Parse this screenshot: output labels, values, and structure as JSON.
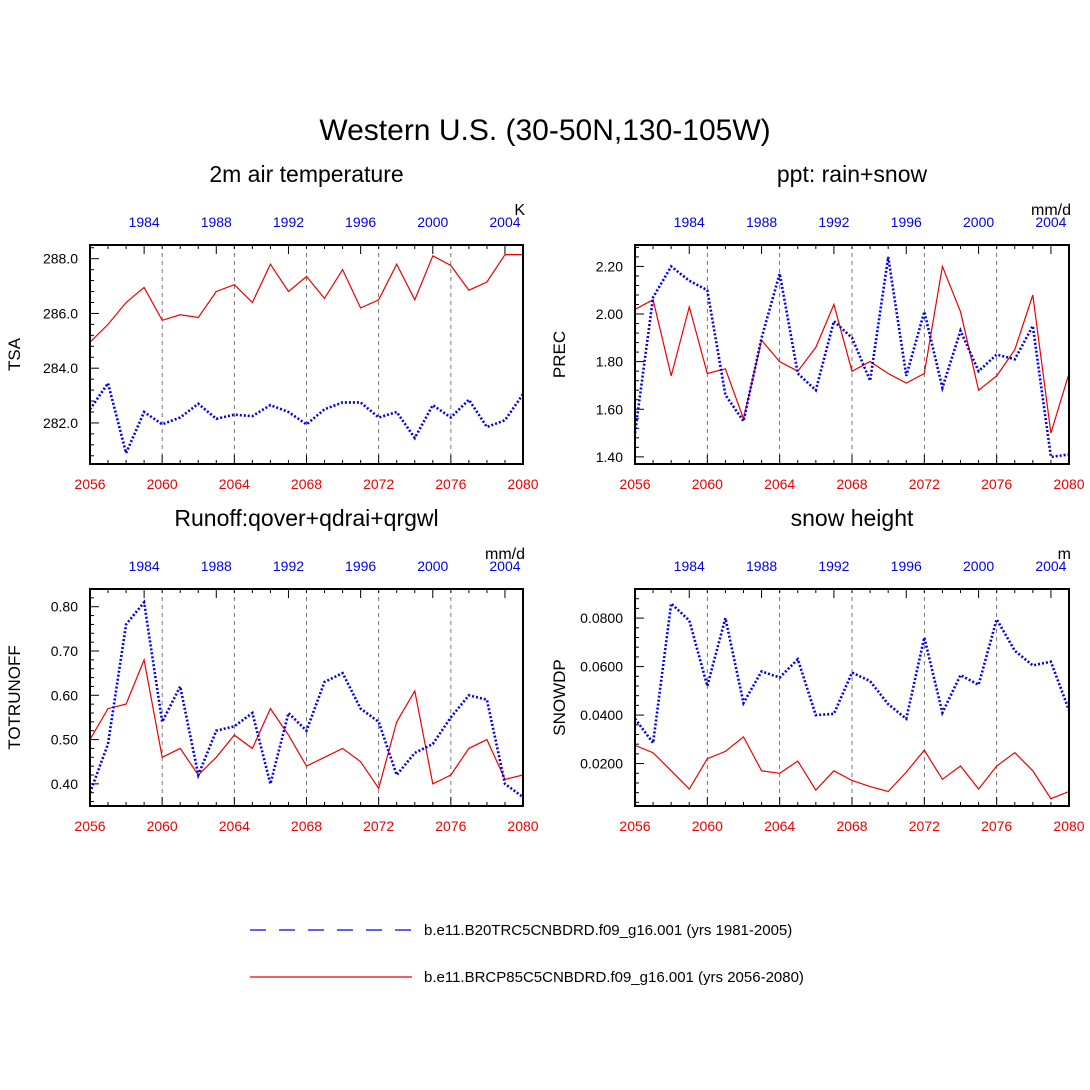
{
  "title": "Western U.S. (30-50N,130-105W)",
  "colors": {
    "historical": "#0000ee",
    "future": "#ee0000",
    "axis": "#000000",
    "grid": "#555555"
  },
  "legend": [
    {
      "label": "b.e11.B20TRC5CNBDRD.f09_g16.001 (yrs 1981-2005)",
      "color": "#0000ee",
      "style": "dashed"
    },
    {
      "label": "b.e11.BRCP85C5CNBDRD.f09_g16.001 (yrs 2056-2080)",
      "color": "#ee0000",
      "style": "solid"
    }
  ],
  "chart_data": [
    {
      "type": "line",
      "title": "2m air temperature",
      "ylabel": "TSA",
      "units": "K",
      "ylim": [
        280.5,
        288.5
      ],
      "yticks": [
        282.0,
        284.0,
        286.0,
        288.0
      ],
      "ytick_labels": [
        "282.0",
        "284.0",
        "286.0",
        "288.0"
      ],
      "x_bottom": {
        "label": "",
        "range": [
          2056,
          2080
        ],
        "ticks": [
          2056,
          2060,
          2064,
          2068,
          2072,
          2076,
          2080
        ],
        "tick_labels": [
          "2056",
          "2060",
          "2064",
          "2068",
          "2072",
          "2076",
          "2080"
        ]
      },
      "x_top": {
        "range": [
          1981,
          2005
        ],
        "ticks": [
          1984,
          1988,
          1992,
          1996,
          2000,
          2004
        ],
        "tick_labels": [
          "1984",
          "1988",
          "1992",
          "1996",
          "2000",
          "2004"
        ]
      },
      "series": [
        {
          "name": "b.e11.BRCP85C5CNBDRD.f09_g16.001 (yrs 2056-2080)",
          "axis": "bottom",
          "x": [
            2056,
            2057,
            2058,
            2059,
            2060,
            2061,
            2062,
            2063,
            2064,
            2065,
            2066,
            2067,
            2068,
            2069,
            2070,
            2071,
            2072,
            2073,
            2074,
            2075,
            2076,
            2077,
            2078,
            2079,
            2080
          ],
          "values": [
            284.95,
            285.6,
            286.4,
            286.95,
            285.75,
            285.95,
            285.85,
            286.8,
            287.05,
            286.4,
            287.8,
            286.8,
            287.35,
            286.55,
            287.6,
            286.2,
            286.5,
            287.8,
            286.5,
            288.1,
            287.75,
            286.85,
            287.15,
            288.15,
            288.15
          ]
        },
        {
          "name": "b.e11.B20TRC5CNBDRD.f09_g16.001 (yrs 1981-2005)",
          "axis": "top",
          "x": [
            1981,
            1982,
            1983,
            1984,
            1985,
            1986,
            1987,
            1988,
            1989,
            1990,
            1991,
            1992,
            1993,
            1994,
            1995,
            1996,
            1997,
            1998,
            1999,
            2000,
            2001,
            2002,
            2003,
            2004,
            2005
          ],
          "values": [
            282.5,
            283.45,
            280.9,
            282.4,
            281.95,
            282.2,
            282.7,
            282.15,
            282.3,
            282.25,
            282.65,
            282.4,
            281.95,
            282.5,
            282.75,
            282.75,
            282.2,
            282.4,
            281.45,
            282.65,
            282.2,
            282.85,
            281.85,
            282.1,
            283.05
          ]
        }
      ]
    },
    {
      "type": "line",
      "title": "ppt: rain+snow",
      "ylabel": "PREC",
      "units": "mm/d",
      "ylim": [
        1.37,
        2.29
      ],
      "yticks": [
        1.4,
        1.6,
        1.8,
        2.0,
        2.2
      ],
      "ytick_labels": [
        "1.40",
        "1.60",
        "1.80",
        "2.00",
        "2.20"
      ],
      "x_bottom": {
        "range": [
          2056,
          2080
        ],
        "ticks": [
          2056,
          2060,
          2064,
          2068,
          2072,
          2076,
          2080
        ],
        "tick_labels": [
          "2056",
          "2060",
          "2064",
          "2068",
          "2072",
          "2076",
          "2080"
        ]
      },
      "x_top": {
        "range": [
          1981,
          2005
        ],
        "ticks": [
          1984,
          1988,
          1992,
          1996,
          2000,
          2004
        ],
        "tick_labels": [
          "1984",
          "1988",
          "1992",
          "1996",
          "2000",
          "2004"
        ]
      },
      "series": [
        {
          "name": "b.e11.BRCP85C5CNBDRD.f09_g16.001 (yrs 2056-2080)",
          "axis": "bottom",
          "x": [
            2056,
            2057,
            2058,
            2059,
            2060,
            2061,
            2062,
            2063,
            2064,
            2065,
            2066,
            2067,
            2068,
            2069,
            2070,
            2071,
            2072,
            2073,
            2074,
            2075,
            2076,
            2077,
            2078,
            2079,
            2080
          ],
          "values": [
            2.02,
            2.06,
            1.74,
            2.03,
            1.75,
            1.77,
            1.56,
            1.89,
            1.8,
            1.76,
            1.86,
            2.04,
            1.76,
            1.8,
            1.75,
            1.71,
            1.75,
            2.2,
            2.01,
            1.68,
            1.74,
            1.85,
            2.08,
            1.5,
            1.75
          ]
        },
        {
          "name": "b.e11.B20TRC5CNBDRD.f09_g16.001 (yrs 1981-2005)",
          "axis": "top",
          "x": [
            1981,
            1982,
            1983,
            1984,
            1985,
            1986,
            1987,
            1988,
            1989,
            1990,
            1991,
            1992,
            1993,
            1994,
            1995,
            1996,
            1997,
            1998,
            1999,
            2000,
            2001,
            2002,
            2003,
            2004,
            2005
          ],
          "values": [
            1.5,
            2.07,
            2.2,
            2.14,
            2.1,
            1.66,
            1.55,
            1.9,
            2.17,
            1.75,
            1.68,
            1.97,
            1.9,
            1.72,
            2.24,
            1.74,
            2.01,
            1.69,
            1.93,
            1.76,
            1.83,
            1.81,
            1.95,
            1.4,
            1.41
          ]
        }
      ]
    },
    {
      "type": "line",
      "title": "Runoff:qover+qdrai+qrgwl",
      "ylabel": "TOTRUNOFF",
      "units": "mm/d",
      "ylim": [
        0.35,
        0.84
      ],
      "yticks": [
        0.4,
        0.5,
        0.6,
        0.7,
        0.8
      ],
      "ytick_labels": [
        "0.40",
        "0.50",
        "0.60",
        "0.70",
        "0.80"
      ],
      "x_bottom": {
        "range": [
          2056,
          2080
        ],
        "ticks": [
          2056,
          2060,
          2064,
          2068,
          2072,
          2076,
          2080
        ],
        "tick_labels": [
          "2056",
          "2060",
          "2064",
          "2068",
          "2072",
          "2076",
          "2080"
        ]
      },
      "x_top": {
        "range": [
          1981,
          2005
        ],
        "ticks": [
          1984,
          1988,
          1992,
          1996,
          2000,
          2004
        ],
        "tick_labels": [
          "1984",
          "1988",
          "1992",
          "1996",
          "2000",
          "2004"
        ]
      },
      "series": [
        {
          "name": "b.e11.BRCP85C5CNBDRD.f09_g16.001 (yrs 2056-2080)",
          "axis": "bottom",
          "x": [
            2056,
            2057,
            2058,
            2059,
            2060,
            2061,
            2062,
            2063,
            2064,
            2065,
            2066,
            2067,
            2068,
            2069,
            2070,
            2071,
            2072,
            2073,
            2074,
            2075,
            2076,
            2077,
            2078,
            2079,
            2080
          ],
          "values": [
            0.5,
            0.57,
            0.58,
            0.68,
            0.46,
            0.48,
            0.42,
            0.46,
            0.51,
            0.48,
            0.57,
            0.51,
            0.44,
            0.46,
            0.48,
            0.45,
            0.39,
            0.54,
            0.61,
            0.4,
            0.42,
            0.48,
            0.5,
            0.41,
            0.42
          ]
        },
        {
          "name": "b.e11.B20TRC5CNBDRD.f09_g16.001 (yrs 1981-2005)",
          "axis": "top",
          "x": [
            1981,
            1982,
            1983,
            1984,
            1985,
            1986,
            1987,
            1988,
            1989,
            1990,
            1991,
            1992,
            1993,
            1994,
            1995,
            1996,
            1997,
            1998,
            1999,
            2000,
            2001,
            2002,
            2003,
            2004,
            2005
          ],
          "values": [
            0.38,
            0.49,
            0.76,
            0.81,
            0.54,
            0.62,
            0.42,
            0.52,
            0.53,
            0.56,
            0.4,
            0.56,
            0.52,
            0.63,
            0.65,
            0.57,
            0.54,
            0.42,
            0.47,
            0.49,
            0.55,
            0.6,
            0.59,
            0.4,
            0.37
          ]
        }
      ]
    },
    {
      "type": "line",
      "title": "snow height",
      "ylabel": "SNOWDP",
      "units": "m",
      "ylim": [
        0.0025,
        0.092
      ],
      "yticks": [
        0.02,
        0.04,
        0.06,
        0.08
      ],
      "ytick_labels": [
        "0.0200",
        "0.0400",
        "0.0600",
        "0.0800"
      ],
      "x_bottom": {
        "range": [
          2056,
          2080
        ],
        "ticks": [
          2056,
          2060,
          2064,
          2068,
          2072,
          2076,
          2080
        ],
        "tick_labels": [
          "2056",
          "2060",
          "2064",
          "2068",
          "2072",
          "2076",
          "2080"
        ]
      },
      "x_top": {
        "range": [
          1981,
          2005
        ],
        "ticks": [
          1984,
          1988,
          1992,
          1996,
          2000,
          2004
        ],
        "tick_labels": [
          "1984",
          "1988",
          "1992",
          "1996",
          "2000",
          "2004"
        ]
      },
      "series": [
        {
          "name": "b.e11.BRCP85C5CNBDRD.f09_g16.001 (yrs 2056-2080)",
          "axis": "bottom",
          "x": [
            2056,
            2057,
            2058,
            2059,
            2060,
            2061,
            2062,
            2063,
            2064,
            2065,
            2066,
            2067,
            2068,
            2069,
            2070,
            2071,
            2072,
            2073,
            2074,
            2075,
            2076,
            2077,
            2078,
            2079,
            2080
          ],
          "values": [
            0.0275,
            0.0245,
            0.017,
            0.0095,
            0.022,
            0.025,
            0.031,
            0.017,
            0.016,
            0.021,
            0.009,
            0.017,
            0.013,
            0.0105,
            0.0085,
            0.0165,
            0.0255,
            0.0135,
            0.019,
            0.0095,
            0.019,
            0.0245,
            0.017,
            0.0055,
            0.0085
          ]
        },
        {
          "name": "b.e11.B20TRC5CNBDRD.f09_g16.001 (yrs 1981-2005)",
          "axis": "top",
          "x": [
            1981,
            1982,
            1983,
            1984,
            1985,
            1986,
            1987,
            1988,
            1989,
            1990,
            1991,
            1992,
            1993,
            1994,
            1995,
            1996,
            1997,
            1998,
            1999,
            2000,
            2001,
            2002,
            2003,
            2004,
            2005
          ],
          "values": [
            0.0385,
            0.0285,
            0.086,
            0.079,
            0.052,
            0.08,
            0.045,
            0.058,
            0.0555,
            0.063,
            0.04,
            0.0405,
            0.0575,
            0.054,
            0.0445,
            0.0385,
            0.072,
            0.041,
            0.0565,
            0.0525,
            0.0795,
            0.0665,
            0.0605,
            0.062,
            0.042
          ]
        }
      ]
    }
  ]
}
